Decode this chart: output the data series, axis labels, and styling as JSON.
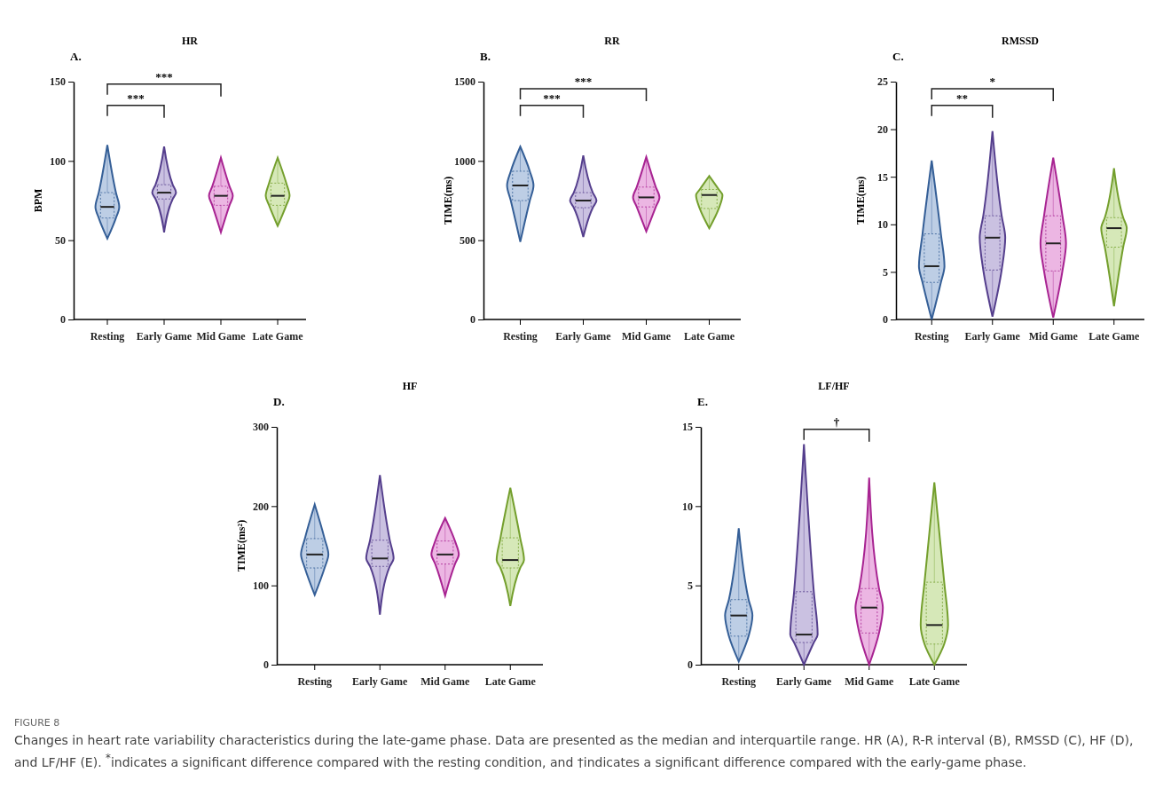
{
  "chart_data": [
    {
      "type": "box",
      "title": "HR",
      "subtitle": "A.",
      "ylabel": "BPM",
      "categories": [
        "Resting",
        "Early Game",
        "Mid Game",
        "Late Game"
      ],
      "colors": [
        "#bdcee5",
        "#cac1e1",
        "#ecb6e3",
        "#d6e8b8"
      ],
      "ylim": [
        0,
        150
      ],
      "yticks": [
        0,
        50,
        100,
        150
      ],
      "boxes": [
        {
          "low": 51,
          "q1": 64,
          "median": 71,
          "q3": 80,
          "high": 110
        },
        {
          "low": 55,
          "q1": 76,
          "median": 80,
          "q3": 85,
          "high": 109
        },
        {
          "low": 55,
          "q1": 72,
          "median": 78,
          "q3": 84,
          "high": 102
        },
        {
          "low": 59,
          "q1": 72,
          "median": 78,
          "q3": 86,
          "high": 102
        }
      ],
      "annotations": [
        "***",
        "***"
      ]
    },
    {
      "type": "box",
      "title": "RR",
      "subtitle": "B.",
      "ylabel": "TIME(ms)",
      "categories": [
        "Resting",
        "Early Game",
        "Mid Game",
        "Late Game"
      ],
      "colors": [
        "#bdcee5",
        "#cac1e1",
        "#ecb6e3",
        "#d6e8b8"
      ],
      "ylim": [
        0,
        1500
      ],
      "yticks": [
        0,
        500,
        1000,
        1500
      ],
      "boxes": [
        {
          "low": 490,
          "q1": 750,
          "median": 845,
          "q3": 935,
          "high": 1090
        },
        {
          "low": 520,
          "q1": 705,
          "median": 750,
          "q3": 800,
          "high": 1035
        },
        {
          "low": 555,
          "q1": 710,
          "median": 770,
          "q3": 835,
          "high": 1025
        },
        {
          "low": 575,
          "q1": 700,
          "median": 785,
          "q3": 820,
          "high": 905
        }
      ],
      "annotations": [
        "***",
        "***"
      ]
    },
    {
      "type": "box",
      "title": "RMSSD",
      "subtitle": "C.",
      "ylabel": "TIME(ms)",
      "categories": [
        "Resting",
        "Early Game",
        "Mid Game",
        "Late Game"
      ],
      "colors": [
        "#bdcee5",
        "#cac1e1",
        "#ecb6e3",
        "#d6e8b8"
      ],
      "ylim": [
        0,
        25
      ],
      "yticks": [
        0,
        5,
        10,
        15,
        20,
        25
      ],
      "boxes": [
        {
          "low": 0,
          "q1": 3.9,
          "median": 5.6,
          "q3": 9.0,
          "high": 16.7
        },
        {
          "low": 0.3,
          "q1": 5.2,
          "median": 8.6,
          "q3": 10.9,
          "high": 19.8
        },
        {
          "low": 0.2,
          "q1": 5.1,
          "median": 8.0,
          "q3": 10.9,
          "high": 17.0
        },
        {
          "low": 1.4,
          "q1": 7.6,
          "median": 9.6,
          "q3": 10.7,
          "high": 15.9
        }
      ],
      "annotations": [
        "**",
        "*"
      ]
    },
    {
      "type": "box",
      "title": "HF",
      "subtitle": "D.",
      "ylabel": "TIME(ms²)",
      "categories": [
        "Resting",
        "Early Game",
        "Mid Game",
        "Late Game"
      ],
      "colors": [
        "#bdcee5",
        "#cac1e1",
        "#ecb6e3",
        "#d6e8b8"
      ],
      "ylim": [
        0,
        300
      ],
      "yticks": [
        0,
        100,
        200,
        300
      ],
      "boxes": [
        {
          "low": 88,
          "q1": 122,
          "median": 139,
          "q3": 159,
          "high": 202
        },
        {
          "low": 63,
          "q1": 124,
          "median": 134,
          "q3": 157,
          "high": 239
        },
        {
          "low": 87,
          "q1": 127,
          "median": 139,
          "q3": 156,
          "high": 185
        },
        {
          "low": 74,
          "q1": 122,
          "median": 132,
          "q3": 160,
          "high": 223
        }
      ]
    },
    {
      "type": "box",
      "title": "LF/HF",
      "subtitle": "E.",
      "categories": [
        "Resting",
        "Early Game",
        "Mid Game",
        "Late Game"
      ],
      "colors": [
        "#bdcee5",
        "#cac1e1",
        "#ecb6e3",
        "#d6e8b8"
      ],
      "ylim": [
        0,
        15
      ],
      "yticks": [
        0,
        5,
        10,
        15
      ],
      "boxes": [
        {
          "low": 0.2,
          "q1": 1.8,
          "median": 3.1,
          "q3": 4.1,
          "high": 8.6
        },
        {
          "low": 0,
          "q1": 1.4,
          "median": 1.9,
          "q3": 4.6,
          "high": 13.9
        },
        {
          "low": 0,
          "q1": 2.0,
          "median": 3.6,
          "q3": 4.8,
          "high": 11.8
        },
        {
          "low": 0,
          "q1": 1.3,
          "median": 2.5,
          "q3": 5.2,
          "high": 11.5
        }
      ],
      "annotations": [
        "†",
        "FIGURE 8",
        "Changes in heart rate variability characteristics during the late-game phase. Data are presented as the median and interquartile range. HR (A), R-R interval (B), RMSSD (C), HF (D), and LF/HF (E). $^{*}$indicates a significant difference compared with the resting condition, and †indicates a significant difference compared with the early-game phase."
      ]
    }
  ]
}
